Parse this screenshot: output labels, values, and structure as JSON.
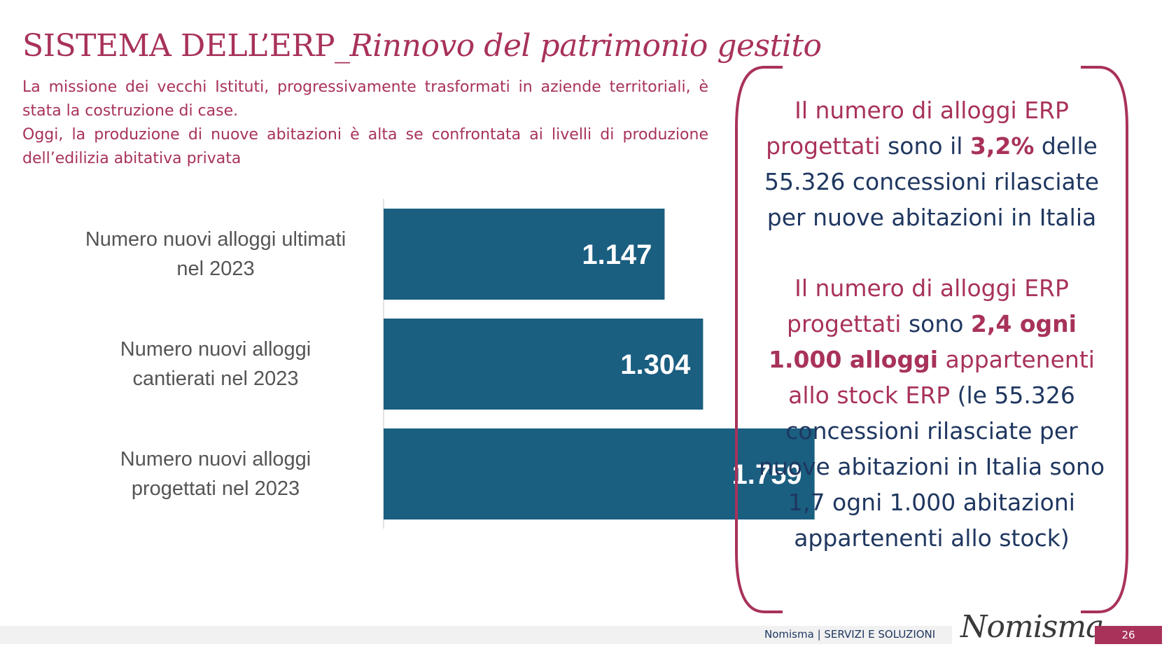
{
  "header": {
    "title_main": "SISTEMA DELL’ERP_",
    "title_italic": "Rinnovo del patrimonio gestito"
  },
  "intro": {
    "paragraph1": "La missione dei vecchi Istituti, progressivamente trasformati in aziende territoriali, è  stata la costruzione di case.",
    "paragraph2": "Oggi, la produzione di nuove abitazioni è alta se confrontata ai livelli di produzione dell’edilizia abitativa privata"
  },
  "chart_data": {
    "type": "bar",
    "orientation": "horizontal",
    "categories": [
      [
        "Numero nuovi alloggi ultimati",
        "nel 2023"
      ],
      [
        "Numero nuovi alloggi",
        "cantierati nel 2023"
      ],
      [
        "Numero nuovi alloggi",
        "progettati nel 2023"
      ]
    ],
    "values": [
      1147,
      1304,
      1759
    ],
    "data_labels": [
      "1.147",
      "1.304",
      "1.759"
    ],
    "bar_color": "#1a5e80",
    "xlim": [
      0,
      2100
    ]
  },
  "callout": {
    "block1": {
      "part1": "Il numero di alloggi ERP progettati",
      "part2": " sono il ",
      "part3": "3,2%",
      "part4": " delle 55.326 concessioni rilasciate per nuove abitazioni in Italia"
    },
    "block2": {
      "part1": "Il numero di alloggi ERP progettati",
      "part2": " sono ",
      "part3": "2,4 ogni 1.000 alloggi",
      "part4": " appartenenti allo stock ERP",
      "part5": " (le 55.326 concessioni rilasciate per nuove abitazioni in Italia sono 1,7 ogni 1.000 abitazioni appartenenti allo stock)"
    },
    "border_color": "#a8325a"
  },
  "footer": {
    "text": "Nomisma | SERVIZI E SOLUZIONI",
    "logo": "Nomisma",
    "page_number": "26"
  },
  "colors": {
    "accent": "#a8325a",
    "navy": "#1f3760",
    "bar": "#1a5e80"
  }
}
